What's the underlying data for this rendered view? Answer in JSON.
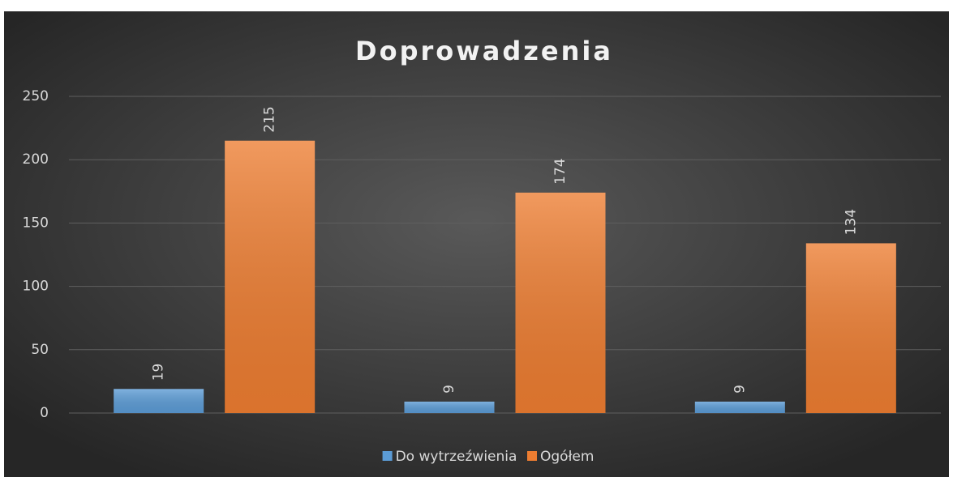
{
  "chart_data": {
    "type": "bar",
    "title": "Doprowadzenia",
    "categories": [
      null,
      null,
      null
    ],
    "series": [
      {
        "name": "Do wytrzeźwienia",
        "color": "#5b9bd5",
        "values": [
          19,
          9,
          9
        ]
      },
      {
        "name": "Ogółem",
        "color": "#ed7d31",
        "values": [
          215,
          174,
          134
        ]
      }
    ],
    "ylim": [
      0,
      250
    ],
    "yticks": [
      0,
      50,
      100,
      150,
      200,
      250
    ],
    "grid": true,
    "legend": "bottom"
  }
}
